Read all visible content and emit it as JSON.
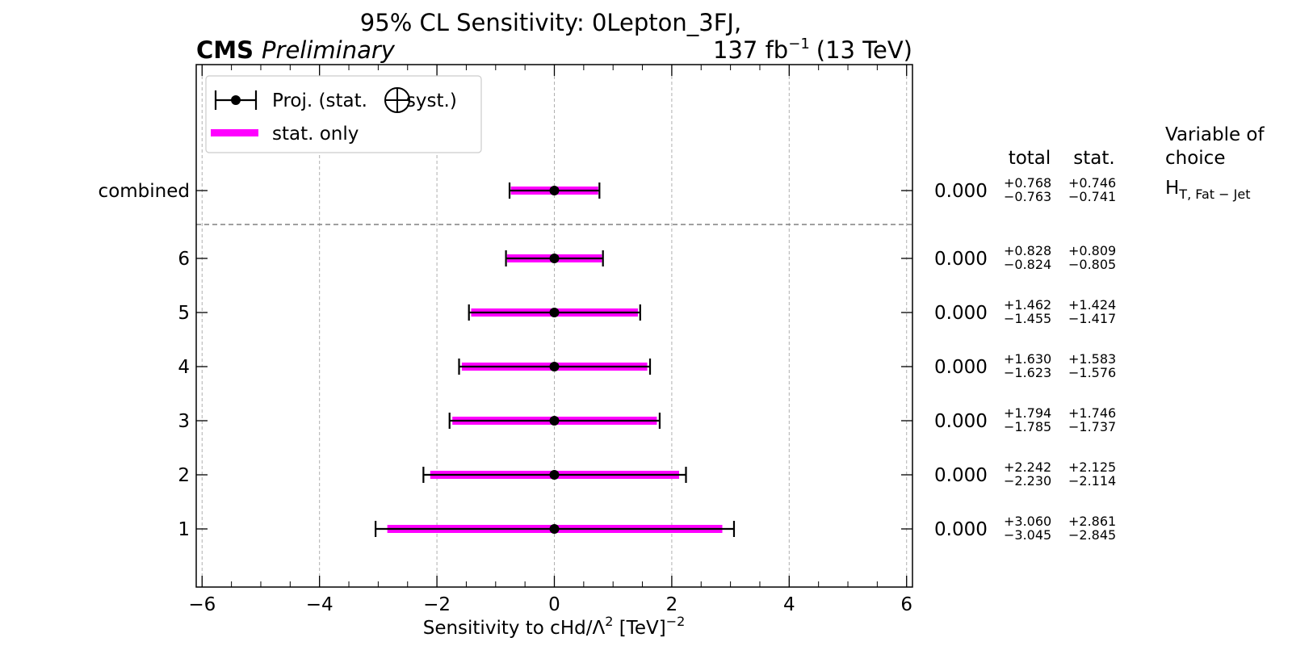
{
  "chart_data": {
    "type": "errorbar",
    "title_line1": "95% CL Sensitivity: 0Lepton_3FJ,",
    "experiment": "CMS",
    "status": "Preliminary",
    "lumi_value": "137 fb",
    "lumi_exp": "−1",
    "lumi_energy": "(13 TeV)",
    "xlabel_pre": "Sensitivity to cHd/Λ",
    "xlabel_exp1": "2",
    "xlabel_mid": " [TeV]",
    "xlabel_exp2": "−2",
    "xlim": [
      -6.1,
      6.1
    ],
    "xticks": [
      -6,
      -4,
      -2,
      0,
      2,
      4,
      6
    ],
    "xtick_labels": [
      "−6",
      "−4",
      "−2",
      "0",
      "2",
      "4",
      "6"
    ],
    "grid": true,
    "legend": {
      "location": "top-left",
      "proj_label_pre": "Proj. (stat.",
      "proj_label_post": "syst.)",
      "stat_label": "stat. only"
    },
    "columns": {
      "total": "total",
      "stat": "stat.",
      "variable_line1": "Variable of",
      "variable_line2": "choice"
    },
    "variable": {
      "base": "H",
      "sub": "T, Fat − Jet"
    },
    "colors": {
      "stat_band": "#ff00ff",
      "marker": "#000000",
      "grid": "#b0b0b0",
      "separator": "#808080"
    },
    "rows": [
      {
        "label": "combined",
        "central": 0.0,
        "central_text": "0.000",
        "total_up": 0.768,
        "total_dn": 0.763,
        "stat_up": 0.746,
        "stat_dn": 0.741,
        "total_up_text": "+0.768",
        "total_dn_text": "−0.763",
        "stat_up_text": "+0.746",
        "stat_dn_text": "−0.741"
      },
      {
        "label": "6",
        "central": 0.0,
        "central_text": "0.000",
        "total_up": 0.828,
        "total_dn": 0.824,
        "stat_up": 0.809,
        "stat_dn": 0.805,
        "total_up_text": "+0.828",
        "total_dn_text": "−0.824",
        "stat_up_text": "+0.809",
        "stat_dn_text": "−0.805"
      },
      {
        "label": "5",
        "central": 0.0,
        "central_text": "0.000",
        "total_up": 1.462,
        "total_dn": 1.455,
        "stat_up": 1.424,
        "stat_dn": 1.417,
        "total_up_text": "+1.462",
        "total_dn_text": "−1.455",
        "stat_up_text": "+1.424",
        "stat_dn_text": "−1.417"
      },
      {
        "label": "4",
        "central": 0.0,
        "central_text": "0.000",
        "total_up": 1.63,
        "total_dn": 1.623,
        "stat_up": 1.583,
        "stat_dn": 1.576,
        "total_up_text": "+1.630",
        "total_dn_text": "−1.623",
        "stat_up_text": "+1.583",
        "stat_dn_text": "−1.576"
      },
      {
        "label": "3",
        "central": 0.0,
        "central_text": "0.000",
        "total_up": 1.794,
        "total_dn": 1.785,
        "stat_up": 1.746,
        "stat_dn": 1.737,
        "total_up_text": "+1.794",
        "total_dn_text": "−1.785",
        "stat_up_text": "+1.746",
        "stat_dn_text": "−1.737"
      },
      {
        "label": "2",
        "central": 0.0,
        "central_text": "0.000",
        "total_up": 2.242,
        "total_dn": 2.23,
        "stat_up": 2.125,
        "stat_dn": 2.114,
        "total_up_text": "+2.242",
        "total_dn_text": "−2.230",
        "stat_up_text": "+2.125",
        "stat_dn_text": "−2.114"
      },
      {
        "label": "1",
        "central": 0.0,
        "central_text": "0.000",
        "total_up": 3.06,
        "total_dn": 3.045,
        "stat_up": 2.861,
        "stat_dn": 2.845,
        "total_up_text": "+3.060",
        "total_dn_text": "−3.045",
        "stat_up_text": "+2.861",
        "stat_dn_text": "−2.845"
      }
    ]
  }
}
